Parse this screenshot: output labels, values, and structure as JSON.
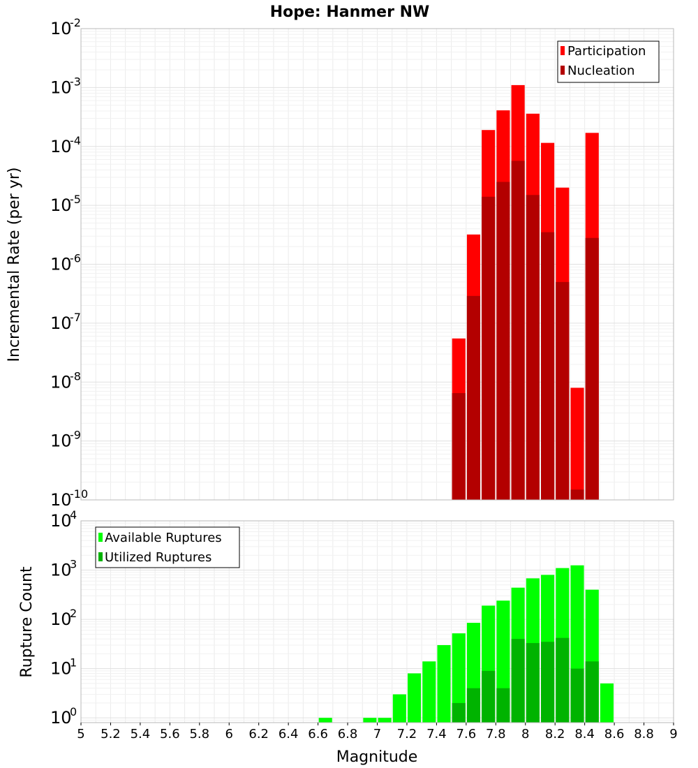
{
  "chart_data": [
    {
      "type": "bar",
      "title": "Hope: Hanmer NW",
      "xlabel": "",
      "ylabel": "Incremental Rate (per yr)",
      "y_scale": "log",
      "xlim": [
        5,
        9
      ],
      "ylim": [
        1e-10,
        0.01
      ],
      "y_ticks": [
        "10",
        "10",
        "10",
        "10",
        "10",
        "10",
        "10",
        "10",
        "10"
      ],
      "y_tick_exponents": [
        "-2",
        "-3",
        "-4",
        "-5",
        "-6",
        "-7",
        "-8",
        "-9",
        "-10"
      ],
      "grid": true,
      "legend_position": "top-right",
      "bar_width": 0.09,
      "x": [
        7.55,
        7.65,
        7.75,
        7.85,
        7.95,
        8.05,
        8.15,
        8.25,
        8.35,
        8.45
      ],
      "series": [
        {
          "name": "Participation",
          "color": "#ff0000",
          "values": [
            5.5e-08,
            3.2e-06,
            0.00019,
            0.00041,
            0.0011,
            0.00036,
            0.000115,
            2e-05,
            8e-09,
            0.00017
          ]
        },
        {
          "name": "Nucleation",
          "color": "#b30000",
          "values": [
            6.5e-09,
            2.9e-07,
            1.4e-05,
            2.5e-05,
            5.7e-05,
            1.5e-05,
            3.5e-06,
            5e-07,
            1.5e-10,
            2.8e-06
          ]
        }
      ]
    },
    {
      "type": "bar",
      "title": "",
      "xlabel": "Magnitude",
      "ylabel": "Rupture Count",
      "y_scale": "log",
      "xlim": [
        5,
        9
      ],
      "ylim": [
        0.8,
        10000
      ],
      "x_ticks": [
        "5",
        "5.2",
        "5.4",
        "5.6",
        "5.8",
        "6",
        "6.2",
        "6.4",
        "6.6",
        "6.8",
        "7",
        "7.2",
        "7.4",
        "7.6",
        "7.8",
        "8",
        "8.2",
        "8.4",
        "8.6",
        "8.8",
        "9"
      ],
      "y_ticks": [
        "10",
        "10",
        "10",
        "10",
        "10"
      ],
      "y_tick_exponents": [
        "4",
        "3",
        "2",
        "1",
        "0"
      ],
      "grid": true,
      "legend_position": "top-left",
      "bar_width": 0.09,
      "series": [
        {
          "name": "Available Ruptures",
          "color": "#00ff00",
          "x": [
            6.65,
            6.95,
            7.05,
            7.15,
            7.25,
            7.35,
            7.45,
            7.55,
            7.65,
            7.75,
            7.85,
            7.95,
            8.05,
            8.15,
            8.25,
            8.35,
            8.45,
            8.55
          ],
          "values": [
            1,
            1,
            1,
            3,
            8,
            14,
            30,
            52,
            85,
            190,
            240,
            440,
            680,
            800,
            1100,
            1250,
            400,
            5
          ]
        },
        {
          "name": "Utilized Ruptures",
          "color": "#00b300",
          "x": [
            7.55,
            7.65,
            7.75,
            7.85,
            7.95,
            8.05,
            8.15,
            8.25,
            8.35,
            8.45
          ],
          "values": [
            2,
            4,
            9,
            4,
            40,
            33,
            35,
            42,
            10,
            14
          ]
        }
      ]
    }
  ]
}
